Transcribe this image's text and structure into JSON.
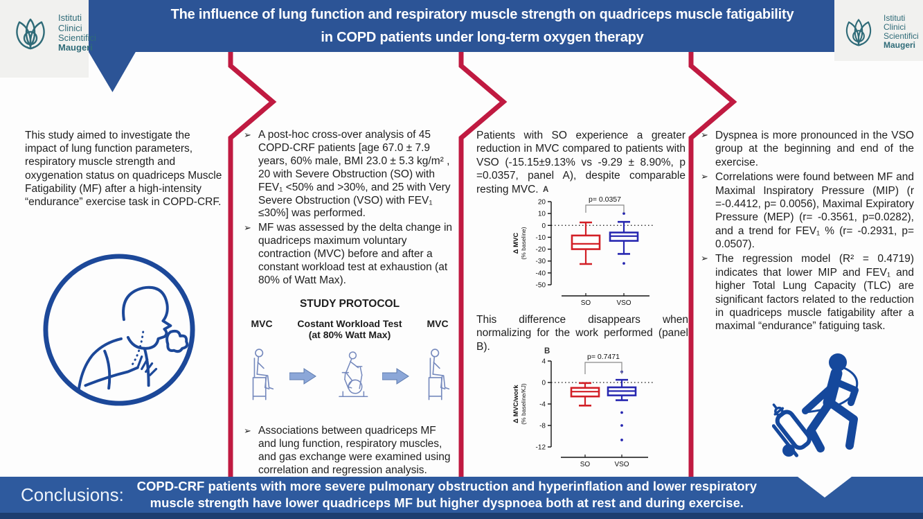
{
  "title": {
    "line1": "The influence of lung function and respiratory muscle strength on quadriceps muscle fatigability",
    "line2": "in COPD patients under long-term oxygen therapy"
  },
  "logo": {
    "line1": "Istituti",
    "line2": "Clinici",
    "line3": "Scientifici",
    "line4": "Maugeri"
  },
  "ui": {
    "bullet": "➢"
  },
  "col1": {
    "intro": "This study aimed to investigate the impact of lung function parameters, respiratory muscle strength and oxygenation status on quadriceps Muscle Fatigability (MF)  after a high-intensity “endurance” exercise task in COPD-CRF."
  },
  "col2": {
    "bullets": [
      "A post-hoc cross-over analysis of 45 COPD-CRF patients [age 67.0 ± 7.9 years, 60% male, BMI 23.0 ± 5.3 kg/m² , 20 with Severe Obstruction (SO) with FEV₁ <50% and >30%,  and 25 with Very Severe Obstruction (VSO) with FEV₁ ≤30%] was performed.",
      "MF was assessed by the delta change in quadriceps maximum voluntary contraction (MVC)  before and after a constant workload test at exhaustion (at 80% of Watt Max)."
    ],
    "protocol_title": "STUDY PROTOCOL",
    "step1": "MVC",
    "step2a": "Costant Workload Test",
    "step2b": "(at 80% Watt Max)",
    "step3": "MVC",
    "assoc_bullet": "Associations between quadriceps MF and lung function, respiratory muscles, and gas exchange were examined using correlation and regression analysis."
  },
  "col3": {
    "p1": "Patients with SO experience a greater reduction in MVC compared to patients with VSO (-15.15±9.13% vs -9.29 ± 8.90%, p =0.0357, panel A), despite comparable resting MVC.",
    "p2": "This difference disappears when normalizing for the work performed (panel B)."
  },
  "col4": {
    "bullets": [
      "Dyspnea is more pronounced in the VSO group at the beginning and end of the exercise.",
      "Correlations were found between MF and Maximal Inspiratory Pressure (MIP) (r  =-0.4412, p= 0.0056), Maximal Expiratory Pressure (MEP) (r= -0.3561, p=0.0282), and a trend for FEV₁ % (r= -0.2931, p= 0.0507).",
      "The regression model (R² = 0.4719) indicates that lower MIP and FEV₁ and higher Total Lung Capacity (TLC) are significant factors related to the reduction in quadriceps muscle fatigability after a maximal “endurance” fatiguing task."
    ]
  },
  "conclusions": {
    "label": "Conclusions:",
    "text": "COPD-CRF patients with more severe pulmonary obstruction and hyperinflation and lower respiratory muscle strength have lower quadriceps MF but higher dyspnoea both at rest and during exercise."
  },
  "colors": {
    "banner_blue": "#2c5496",
    "conclusions_blue": "#2e5a9e",
    "bottom_strip_blue": "#1d3e70",
    "divider_red": "#c01a41",
    "icon_navy": "#1c4899",
    "logo_teal": "#2f6b78",
    "so_red": "#d21f26",
    "vso_blue": "#2727b0"
  },
  "chart_data": [
    {
      "type": "boxplot",
      "panel": "A",
      "p_label": "p= 0.0357",
      "ylabel": "Δ MVC",
      "ylabel2": "(% baseline)",
      "ylim": [
        -50,
        20
      ],
      "yticks": [
        20,
        10,
        0,
        -10,
        -20,
        -30,
        -40,
        -50
      ],
      "zero_line": true,
      "legend_position": "none",
      "grid": false,
      "categories": [
        "SO",
        "VSO"
      ],
      "groups": [
        {
          "name": "SO",
          "color": "#d21f26",
          "whisker_low": -32.5,
          "q1": -20,
          "median": -15.5,
          "q3": -8.5,
          "whisker_high": 2.5,
          "outliers": []
        },
        {
          "name": "VSO",
          "color": "#2727b0",
          "whisker_low": -24,
          "q1": -13,
          "median": -9,
          "q3": -6,
          "whisker_high": 3,
          "outliers": [
            10,
            -32
          ]
        }
      ]
    },
    {
      "type": "boxplot",
      "panel": "B",
      "p_label": "p= 0.7471",
      "ylabel": "Δ MVC/work",
      "ylabel2": "(% baseline/KJ)",
      "ylim": [
        -12,
        4
      ],
      "yticks": [
        4,
        0,
        -4,
        -8,
        -12
      ],
      "zero_line": true,
      "legend_position": "none",
      "grid": false,
      "categories": [
        "SO",
        "VSO"
      ],
      "groups": [
        {
          "name": "SO",
          "color": "#d21f26",
          "whisker_low": -4.3,
          "q1": -2.6,
          "median": -1.7,
          "q3": -1.0,
          "whisker_high": -0.1,
          "outliers": []
        },
        {
          "name": "VSO",
          "color": "#2727b0",
          "whisker_low": -3.3,
          "q1": -2.4,
          "median": -1.6,
          "q3": -0.9,
          "whisker_high": 0.5,
          "outliers": [
            2,
            -5.6,
            -8,
            -10.7
          ]
        }
      ]
    }
  ]
}
